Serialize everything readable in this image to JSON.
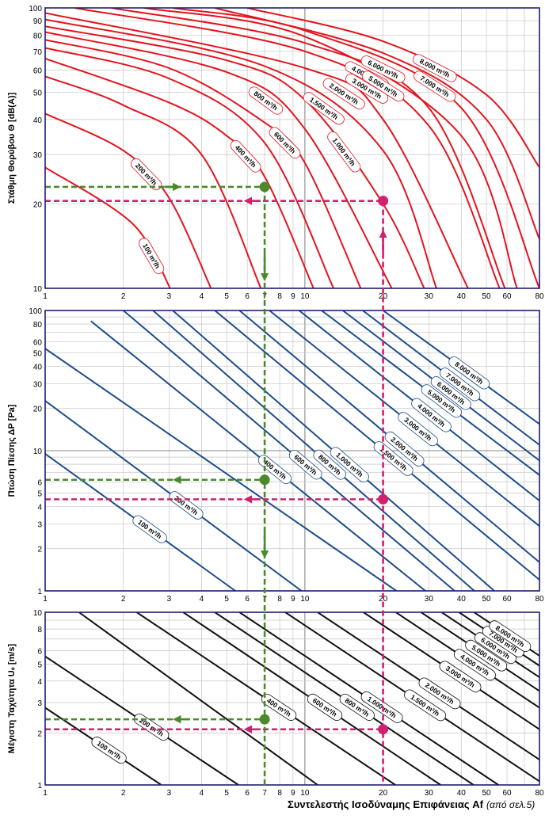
{
  "chart_data": [
    {
      "type": "line",
      "ylabel": "Στάθμη Θορύβου Θ [dB(A)]",
      "xscale": "log",
      "yscale": "log",
      "xlim": [
        1,
        80
      ],
      "ylim": [
        10,
        100
      ],
      "xticks": [
        "1",
        "2",
        "3",
        "4",
        "5",
        "6",
        "7",
        "8",
        "9",
        "10",
        "20",
        "30",
        "40",
        "50",
        "60",
        "80"
      ],
      "yticks": [
        "10",
        "20",
        "30",
        "40",
        "50",
        "60",
        "70",
        "80",
        "90",
        "100"
      ],
      "line_color": "#e4141e",
      "grid": true,
      "series": [
        {
          "name": "100 m³/h",
          "x": [
            1,
            2.17,
            3.03
          ],
          "y": [
            27,
            17,
            10
          ]
        },
        {
          "name": "200 m³/h",
          "x": [
            1,
            2,
            3,
            4.35
          ],
          "y": [
            42,
            31,
            21,
            10
          ]
        },
        {
          "name": "",
          "x": [
            1,
            2,
            4,
            6.77
          ],
          "y": [
            57,
            45,
            30,
            10
          ]
        },
        {
          "name": "400 m³/h",
          "x": [
            1,
            3,
            5,
            7,
            10.8
          ],
          "y": [
            66,
            46,
            35,
            25,
            10
          ]
        },
        {
          "name": "",
          "x": [
            1,
            3,
            7,
            12.9
          ],
          "y": [
            72,
            56,
            33,
            10
          ]
        },
        {
          "name": "600 m³/h",
          "x": [
            1,
            3,
            7,
            10,
            16.4
          ],
          "y": [
            77,
            61,
            39,
            28,
            10
          ]
        },
        {
          "name": "800 m³/h",
          "x": [
            1,
            5,
            10,
            21.6
          ],
          "y": [
            82,
            59,
            37,
            10
          ]
        },
        {
          "name": "1.000 m³/h",
          "x": [
            1,
            5,
            10,
            20,
            28.8
          ],
          "y": [
            86,
            65,
            47,
            20,
            10
          ]
        },
        {
          "name": "1.500 m³/h",
          "x": [
            1,
            7,
            20,
            32.1
          ],
          "y": [
            91,
            62,
            31,
            10
          ]
        },
        {
          "name": "2.000 m³/h",
          "x": [
            1,
            10,
            20,
            42.5
          ],
          "y": [
            96,
            61,
            40,
            10
          ]
        },
        {
          "name": "3.000 m³/h",
          "x": [
            1.3,
            10,
            30,
            56.2
          ],
          "y": [
            100,
            70,
            38,
            10
          ]
        },
        {
          "name": "4.000 m³/h",
          "x": [
            1.8,
            10,
            30,
            58.9
          ],
          "y": [
            100,
            75,
            44,
            10
          ]
        },
        {
          "name": "5.000 m³/h",
          "x": [
            2.4,
            10,
            40,
            65.6
          ],
          "y": [
            100,
            79,
            35,
            10
          ]
        },
        {
          "name": "6.000 m³/h",
          "x": [
            3.1,
            10,
            40,
            80
          ],
          "y": [
            100,
            83,
            44,
            10
          ]
        },
        {
          "name": "7.000 m³/h",
          "x": [
            4.5,
            20,
            50,
            80
          ],
          "y": [
            100,
            69,
            40,
            15
          ]
        },
        {
          "name": "8.000 m³/h",
          "x": [
            6,
            20,
            50,
            80
          ],
          "y": [
            100,
            76,
            49,
            27
          ]
        }
      ],
      "guides": [
        {
          "color": "#4a8a2a",
          "point": [
            7,
            23
          ]
        },
        {
          "color": "#d1206e",
          "point": [
            20,
            20.5
          ]
        }
      ]
    },
    {
      "type": "line",
      "ylabel": "Πτώση Πίεσης ΔP [Pa]",
      "xscale": "log",
      "yscale": "log",
      "xlim": [
        1,
        80
      ],
      "ylim": [
        1,
        100
      ],
      "xticks": [
        "1",
        "2",
        "3",
        "4",
        "5",
        "6",
        "7",
        "8",
        "9",
        "10",
        "20",
        "30",
        "40",
        "50",
        "60",
        "80"
      ],
      "yticks": [
        "1",
        "2",
        "3",
        "4",
        "5",
        "6",
        "10",
        "20",
        "30",
        "40",
        "50",
        "60",
        "80",
        "100"
      ],
      "line_color": "#1e4c8c",
      "grid": true,
      "series": [
        {
          "name": "100 m³/h",
          "x": [
            1,
            5.4
          ],
          "y": [
            9.5,
            1
          ]
        },
        {
          "name": "200 m³/h",
          "x": [
            1,
            9.7
          ],
          "y": [
            22.7,
            1
          ]
        },
        {
          "name": "",
          "x": [
            1,
            22.5
          ],
          "y": [
            53.5,
            1
          ]
        },
        {
          "name": "400 m³/h",
          "x": [
            1.5,
            29.1
          ],
          "y": [
            84,
            1
          ]
        },
        {
          "name": "600 m³/h",
          "x": [
            2,
            37.7
          ],
          "y": [
            100,
            1
          ]
        },
        {
          "name": "800 m³/h",
          "x": [
            2.6,
            44.9
          ],
          "y": [
            100,
            1
          ]
        },
        {
          "name": "1.000 m³/h",
          "x": [
            3.1,
            53.6
          ],
          "y": [
            100,
            1
          ]
        },
        {
          "name": "1.500 m³/h",
          "x": [
            4.5,
            80
          ],
          "y": [
            100,
            1.2
          ]
        },
        {
          "name": "2.000 m³/h",
          "x": [
            5.6,
            80
          ],
          "y": [
            100,
            1.6
          ]
        },
        {
          "name": "3.000 m³/h",
          "x": [
            7.3,
            80
          ],
          "y": [
            100,
            2.9
          ]
        },
        {
          "name": "4.000 m³/h",
          "x": [
            9.5,
            80
          ],
          "y": [
            100,
            4.4
          ]
        },
        {
          "name": "5.000 m³/h",
          "x": [
            11.6,
            80
          ],
          "y": [
            100,
            6.7
          ]
        },
        {
          "name": "6.000 m³/h",
          "x": [
            14,
            80
          ],
          "y": [
            100,
            8.5
          ]
        },
        {
          "name": "7.000 m³/h",
          "x": [
            16.7,
            80
          ],
          "y": [
            100,
            11
          ]
        },
        {
          "name": "8.000 m³/h",
          "x": [
            20,
            80
          ],
          "y": [
            100,
            15.5
          ]
        }
      ],
      "guides": [
        {
          "color": "#4a8a2a",
          "point": [
            7,
            6.2
          ]
        },
        {
          "color": "#d1206e",
          "point": [
            20,
            4.5
          ]
        }
      ]
    },
    {
      "type": "line",
      "ylabel": "Μέγιστη Ταχύτητα Uₑ [m/s]",
      "xlabel": "Συντελεστής Ισοδύναμης Επιφάνειας Af",
      "xlabel_note": "(από σελ.5)",
      "xscale": "log",
      "yscale": "log",
      "xlim": [
        1,
        80
      ],
      "ylim": [
        1,
        10
      ],
      "xticks": [
        "1",
        "2",
        "3",
        "4",
        "5",
        "6",
        "7",
        "8",
        "9",
        "10",
        "20",
        "30",
        "40",
        "50",
        "60",
        "80"
      ],
      "yticks": [
        "1",
        "2",
        "3",
        "4",
        "5",
        "6",
        "8",
        "10"
      ],
      "line_color": "#111111",
      "grid": true,
      "series": [
        {
          "name": "100 m³/h",
          "x": [
            1,
            2.8
          ],
          "y": [
            2.8,
            1
          ]
        },
        {
          "name": "200 m³/h",
          "x": [
            1,
            5.55
          ],
          "y": [
            5.55,
            1
          ]
        },
        {
          "name": "",
          "x": [
            1.35,
            11.2
          ],
          "y": [
            10,
            1
          ]
        },
        {
          "name": "400 m³/h",
          "x": [
            2.25,
            22.3
          ],
          "y": [
            10,
            1
          ]
        },
        {
          "name": "600 m³/h",
          "x": [
            3.4,
            33.3
          ],
          "y": [
            10,
            1
          ]
        },
        {
          "name": "800 m³/h",
          "x": [
            4.5,
            44.6
          ],
          "y": [
            10,
            1
          ]
        },
        {
          "name": "1.000 m³/h",
          "x": [
            5.6,
            55.6
          ],
          "y": [
            10,
            1
          ]
        },
        {
          "name": "1.500 m³/h",
          "x": [
            8.4,
            80
          ],
          "y": [
            10,
            1.05
          ]
        },
        {
          "name": "2.000 m³/h",
          "x": [
            11.2,
            80
          ],
          "y": [
            10,
            1.4
          ]
        },
        {
          "name": "3.000 m³/h",
          "x": [
            16.8,
            80
          ],
          "y": [
            10,
            2.1
          ]
        },
        {
          "name": "4.000 m³/h",
          "x": [
            22.4,
            80
          ],
          "y": [
            10,
            2.8
          ]
        },
        {
          "name": "5.000 m³/h",
          "x": [
            28,
            80
          ],
          "y": [
            10,
            3.5
          ]
        },
        {
          "name": "6.000 m³/h",
          "x": [
            33.6,
            80
          ],
          "y": [
            10,
            4.2
          ]
        },
        {
          "name": "7.000 m³/h",
          "x": [
            39.2,
            80
          ],
          "y": [
            10,
            4.9
          ]
        },
        {
          "name": "8.000 m³/h",
          "x": [
            44.8,
            80
          ],
          "y": [
            10,
            5.6
          ]
        }
      ],
      "guides": [
        {
          "color": "#4a8a2a",
          "point": [
            7,
            2.4
          ]
        },
        {
          "color": "#d1206e",
          "point": [
            20,
            2.1
          ]
        }
      ]
    }
  ]
}
